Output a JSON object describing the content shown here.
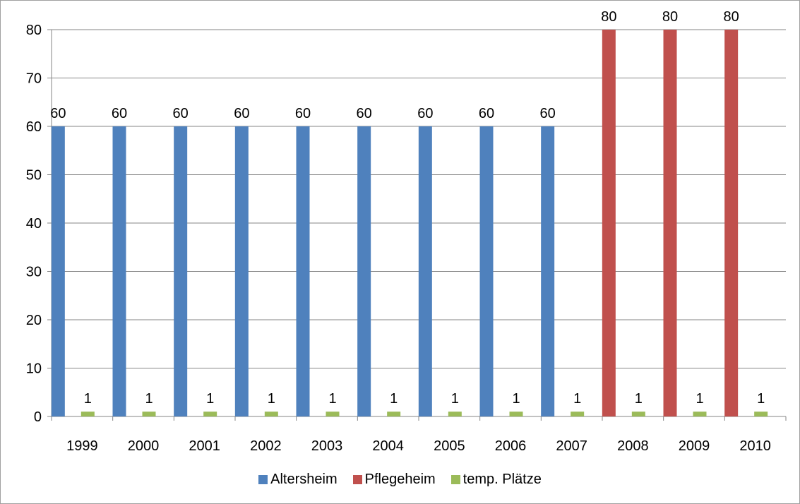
{
  "chart_data": {
    "type": "bar",
    "categories": [
      "1999",
      "2000",
      "2001",
      "2002",
      "2003",
      "2004",
      "2005",
      "2006",
      "2007",
      "2008",
      "2009",
      "2010"
    ],
    "series": [
      {
        "name": "Altersheim",
        "color": "#4f81bd",
        "values": [
          60,
          60,
          60,
          60,
          60,
          60,
          60,
          60,
          60,
          null,
          null,
          null
        ]
      },
      {
        "name": "Pflegeheim",
        "color": "#c0504d",
        "values": [
          null,
          null,
          null,
          null,
          null,
          null,
          null,
          null,
          null,
          80,
          80,
          80
        ]
      },
      {
        "name": "temp. Plätze",
        "color": "#9bbb59",
        "values": [
          1,
          1,
          1,
          1,
          1,
          1,
          1,
          1,
          1,
          1,
          1,
          1
        ]
      }
    ],
    "ylim": [
      0,
      80
    ],
    "yticks": [
      0,
      10,
      20,
      30,
      40,
      50,
      60,
      70,
      80
    ],
    "grid": true,
    "data_labels": true,
    "legend_position": "bottom",
    "title": "",
    "xlabel": "",
    "ylabel": ""
  }
}
